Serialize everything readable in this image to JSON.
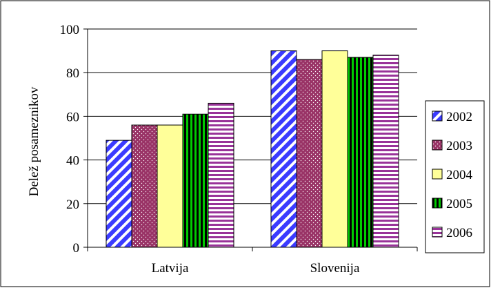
{
  "chart_data": {
    "type": "bar",
    "categories": [
      "Latvija",
      "Slovenija"
    ],
    "series": [
      {
        "name": "2002",
        "values": [
          49,
          90
        ],
        "color": "#3b3bff",
        "pattern": "diagonal-stripes"
      },
      {
        "name": "2003",
        "values": [
          56,
          86
        ],
        "color": "#993366",
        "pattern": "dots"
      },
      {
        "name": "2004",
        "values": [
          56,
          90
        ],
        "color": "#ffff99",
        "pattern": "solid"
      },
      {
        "name": "2005",
        "values": [
          61,
          87
        ],
        "color": "#00cc00",
        "pattern": "vertical-stripes"
      },
      {
        "name": "2006",
        "values": [
          66,
          88
        ],
        "color": "#993399",
        "pattern": "horizontal-stripes"
      }
    ],
    "ylabel": "Delež posameznikov",
    "xlabel": "",
    "ylim": [
      0,
      100
    ],
    "yticks": [
      0,
      20,
      40,
      60,
      80,
      100
    ],
    "grid": true,
    "legend": "right"
  }
}
